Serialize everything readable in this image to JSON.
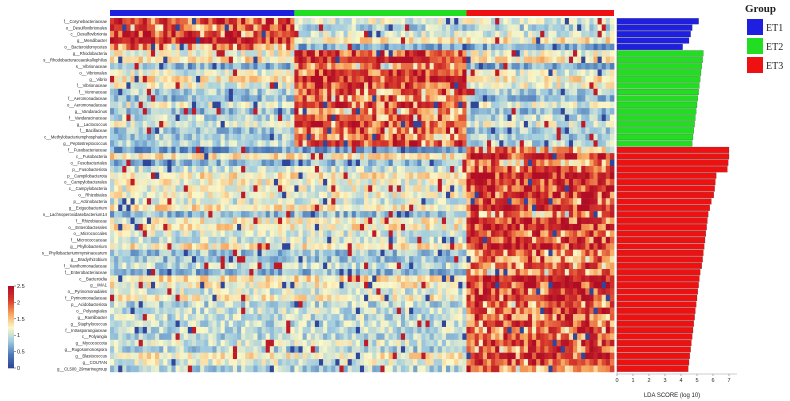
{
  "chart_data": [
    {
      "type": "heatmap",
      "title": "",
      "groups": [
        {
          "name": "ET1",
          "color": "#1f1fe0",
          "samples": 45
        },
        {
          "name": "ET2",
          "color": "#22dd22",
          "samples": 42
        },
        {
          "name": "ET3",
          "color": "#ee1111",
          "samples": 36
        }
      ],
      "colorbar": {
        "range": [
          0,
          2.5
        ],
        "ticks": [
          "0",
          "0.5",
          "1",
          "1.5",
          "2",
          "2.5"
        ],
        "colors": [
          "#2c3f97",
          "#4a78b8",
          "#9fcbe0",
          "#fbf8c8",
          "#f7a55c",
          "#d83a2c",
          "#b10d26"
        ]
      },
      "rows": [
        "f__Corynebacteriaceae",
        "o__Desulfovibrionales",
        "c__Desulfovibrionia",
        "g__Mendibacter",
        "o__Bacteroidomycetes",
        "g__Rhodobacteria",
        "s__Rhodobacteraceaeskallophilus",
        "s__Vibrionaceae",
        "o__Vibrionales",
        "g__Vibrio",
        "f__Vibrionaceae",
        "f__Veronaceae",
        "f__Aeromonadaceae",
        "o__Aeromonadaceae",
        "g__Vandaracinus",
        "f__Vandaracinaceae",
        "g__Lactococcus",
        "f__Bacillaceae",
        "c__Methylobacteriumphosphatum",
        "g__Peptostreptococcus",
        "f__Fusobacteriaceae",
        "c__Fusobacteria",
        "o__Fusobacteriales",
        "p__Fusobacteriota",
        "p__Campilobacterota",
        "o__Campylobacterales",
        "c__Campylobacteria",
        "o__Rhizobiales",
        "p__Actinobacteria",
        "g__Exiguobacterium",
        "s__Lachnoperoxidasebacterium14",
        "f__Rhizobiaceae",
        "o__Enterobacterales",
        "o__Micrococcales",
        "f__Micrococcaceae",
        "g__Phyllobacterium",
        "s__Phyllobacteriummyrsinacearum",
        "g__Bradyrhizobium",
        "f__Xanthomonadaceae",
        "f__Enterobacteriaceae",
        "c__Bacteroidia",
        "g__IMA1",
        "o__Pyrinomonadales",
        "f__Pyrinomonadaceae",
        "p__Acidobacteriota",
        "o__Polyangiales",
        "g__Ramlibacter",
        "g__Staphylococcus",
        "f__Intrasporangiaceae",
        "c__Polyangia",
        "g__Mycococcota",
        "g__Rugosomonospora",
        "g__Blastococcus",
        "g__COUTAN",
        "g__CL500_29marinegroup"
      ]
    },
    {
      "type": "bar",
      "orientation": "horizontal",
      "xlabel": "LDA SCORE (log 10)",
      "xlim": [
        0,
        7.5
      ],
      "xticks": [
        "0",
        "1",
        "2",
        "3",
        "4",
        "5",
        "6",
        "7"
      ],
      "values": [
        5.1,
        4.7,
        4.6,
        4.5,
        4.1,
        5.4,
        5.35,
        5.3,
        5.25,
        5.2,
        5.15,
        5.1,
        5.05,
        5.0,
        4.95,
        4.9,
        4.85,
        4.8,
        4.75,
        4.7,
        7.0,
        7.0,
        6.95,
        6.9,
        6.2,
        6.15,
        6.1,
        6.05,
        5.9,
        5.8,
        5.7,
        5.65,
        5.6,
        5.55,
        5.5,
        5.45,
        5.4,
        5.35,
        5.3,
        5.2,
        5.15,
        5.1,
        5.05,
        5.0,
        4.95,
        4.9,
        4.85,
        4.8,
        4.75,
        4.7,
        4.65,
        4.6,
        4.55,
        4.5,
        4.45
      ],
      "bar_groups": [
        "ET1",
        "ET1",
        "ET1",
        "ET1",
        "ET1",
        "ET2",
        "ET2",
        "ET2",
        "ET2",
        "ET2",
        "ET2",
        "ET2",
        "ET2",
        "ET2",
        "ET2",
        "ET2",
        "ET2",
        "ET2",
        "ET2",
        "ET2",
        "ET3",
        "ET3",
        "ET3",
        "ET3",
        "ET3",
        "ET3",
        "ET3",
        "ET3",
        "ET3",
        "ET3",
        "ET3",
        "ET3",
        "ET3",
        "ET3",
        "ET3",
        "ET3",
        "ET3",
        "ET3",
        "ET3",
        "ET3",
        "ET3",
        "ET3",
        "ET3",
        "ET3",
        "ET3",
        "ET3",
        "ET3",
        "ET3",
        "ET3",
        "ET3",
        "ET3",
        "ET3",
        "ET3",
        "ET3",
        "ET3"
      ]
    }
  ],
  "legend": {
    "title": "Group",
    "items": [
      {
        "label": "ET1",
        "color": "#1f1fe0"
      },
      {
        "label": "ET2",
        "color": "#22dd22"
      },
      {
        "label": "ET3",
        "color": "#ee1111"
      }
    ]
  }
}
